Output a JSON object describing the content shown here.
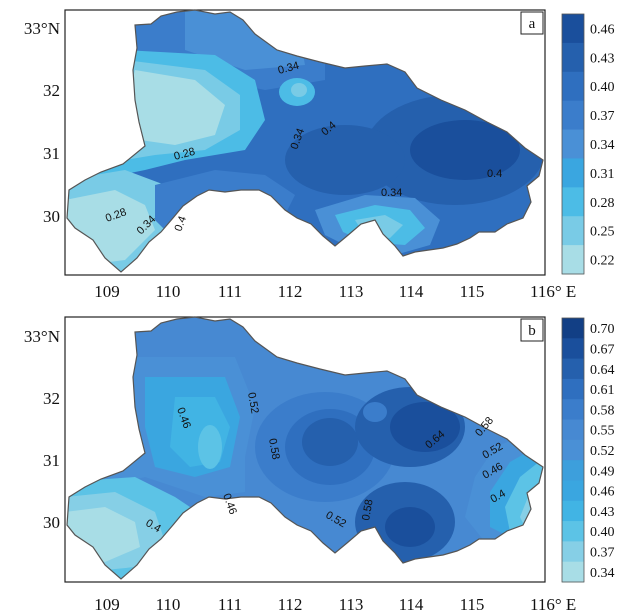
{
  "panels": [
    {
      "id": "a",
      "label": "a",
      "lat_ticks": [
        "33°N",
        "32",
        "31",
        "30"
      ],
      "lon_ticks": [
        "109",
        "110",
        "111",
        "112",
        "113",
        "114",
        "115",
        "116° E"
      ],
      "colorbar": [
        "0.46",
        "0.43",
        "0.40",
        "0.37",
        "0.34",
        "0.31",
        "0.28",
        "0.25",
        "0.22"
      ],
      "colors": [
        "#1a4f9c",
        "#2560ad",
        "#2f6fbf",
        "#3b7dcb",
        "#4a90d6",
        "#3aa6e0",
        "#4cbce6",
        "#79cbe6",
        "#a8dde6"
      ],
      "contours": [
        "0.34",
        "0.28",
        "0.34",
        "0.4",
        "0.28",
        "0.34",
        "0.4",
        "0.34",
        "0.4"
      ]
    },
    {
      "id": "b",
      "label": "b",
      "lat_ticks": [
        "33°N",
        "32",
        "31",
        "30"
      ],
      "lon_ticks": [
        "109",
        "110",
        "111",
        "112",
        "113",
        "114",
        "115",
        "116° E"
      ],
      "colorbar": [
        "0.70",
        "0.67",
        "0.64",
        "0.61",
        "0.58",
        "0.55",
        "0.52",
        "0.49",
        "0.46",
        "0.43",
        "0.40",
        "0.37",
        "0.34"
      ],
      "colors": [
        "#123f85",
        "#1a4f9c",
        "#2560ad",
        "#2f6fbf",
        "#3b7dcb",
        "#4789d2",
        "#4a90d6",
        "#3d9fdc",
        "#3aa6e0",
        "#41b4e4",
        "#5cc3e6",
        "#86cfe6",
        "#a8dde6"
      ],
      "contours": [
        "0.46",
        "0.52",
        "0.58",
        "0.4",
        "0.46",
        "0.52",
        "0.58",
        "0.64",
        "0.58",
        "0.52",
        "0.46",
        "0.4"
      ]
    }
  ]
}
